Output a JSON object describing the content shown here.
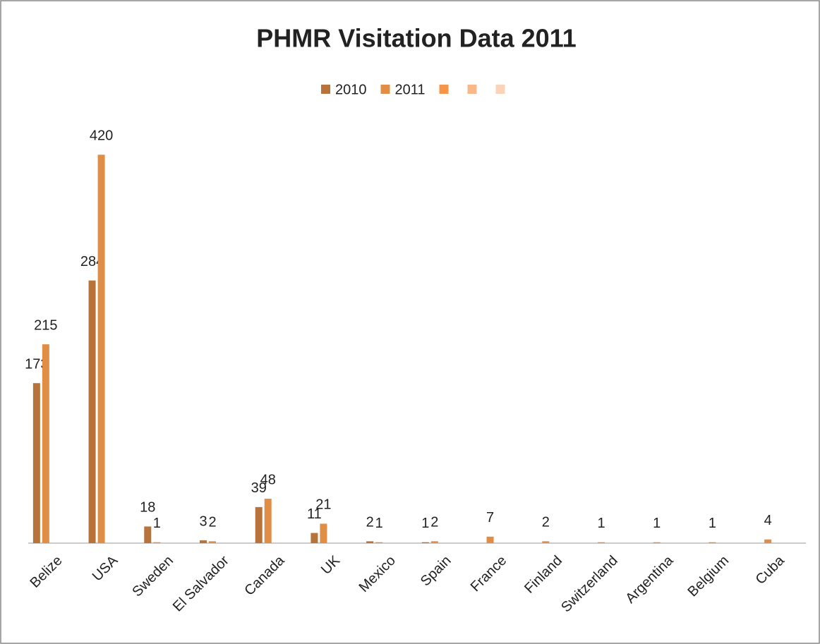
{
  "chart_data": {
    "type": "bar",
    "title": "PHMR Visitation Data 2011",
    "categories": [
      "Belize",
      "USA",
      "Sweden",
      "El Salvador",
      "Canada",
      "UK",
      "Mexico",
      "Spain",
      "France",
      "Finland",
      "Switzerland",
      "Argentina",
      "Belgium",
      "Cuba"
    ],
    "series": [
      {
        "name": "2010",
        "color": "#b8733a",
        "values": [
          173,
          284,
          18,
          3,
          39,
          11,
          2,
          1,
          null,
          null,
          null,
          null,
          null,
          null
        ]
      },
      {
        "name": "2011",
        "color": "#e08e45",
        "values": [
          215,
          420,
          1,
          2,
          48,
          21,
          1,
          2,
          7,
          2,
          1,
          1,
          1,
          4
        ]
      },
      {
        "color": "#f79646",
        "values": [
          null,
          null,
          null,
          null,
          null,
          null,
          null,
          null,
          null,
          null,
          null,
          null,
          null,
          null
        ]
      },
      {
        "color": "#f9b88a",
        "values": [
          null,
          null,
          null,
          null,
          null,
          null,
          null,
          null,
          null,
          null,
          null,
          null,
          null,
          null
        ]
      },
      {
        "color": "#fbd3b8",
        "values": [
          null,
          null,
          null,
          null,
          null,
          null,
          null,
          null,
          null,
          null,
          null,
          null,
          null,
          null
        ]
      }
    ],
    "ylim": [
      0,
      450
    ],
    "legend": "top"
  }
}
